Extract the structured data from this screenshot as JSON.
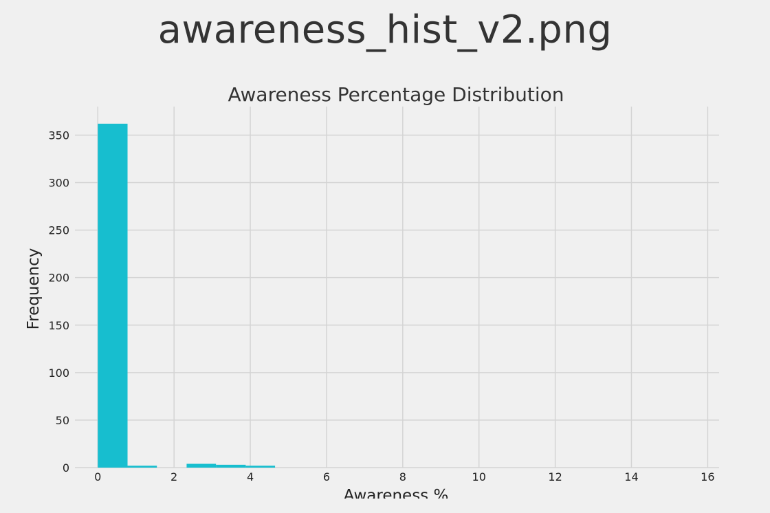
{
  "header": {
    "file_title": "awareness_hist_v2.png"
  },
  "chart_data": {
    "type": "bar",
    "title": "Awareness Percentage Distribution",
    "xlabel": "Awareness %",
    "ylabel": "Frequency",
    "xlim": [
      -0.6,
      16.3
    ],
    "ylim": [
      0,
      380
    ],
    "xticks": [
      0,
      2,
      4,
      6,
      8,
      10,
      12,
      14,
      16
    ],
    "yticks": [
      0,
      50,
      100,
      150,
      200,
      250,
      300,
      350
    ],
    "grid": true,
    "bar_color": "#17becf",
    "bins": [
      {
        "x0": 0.0,
        "x1": 0.78,
        "count": 362
      },
      {
        "x0": 0.78,
        "x1": 1.55,
        "count": 2
      },
      {
        "x0": 1.55,
        "x1": 2.33,
        "count": 0
      },
      {
        "x0": 2.33,
        "x1": 3.1,
        "count": 4
      },
      {
        "x0": 3.1,
        "x1": 3.88,
        "count": 3
      },
      {
        "x0": 3.88,
        "x1": 4.65,
        "count": 2
      }
    ]
  }
}
